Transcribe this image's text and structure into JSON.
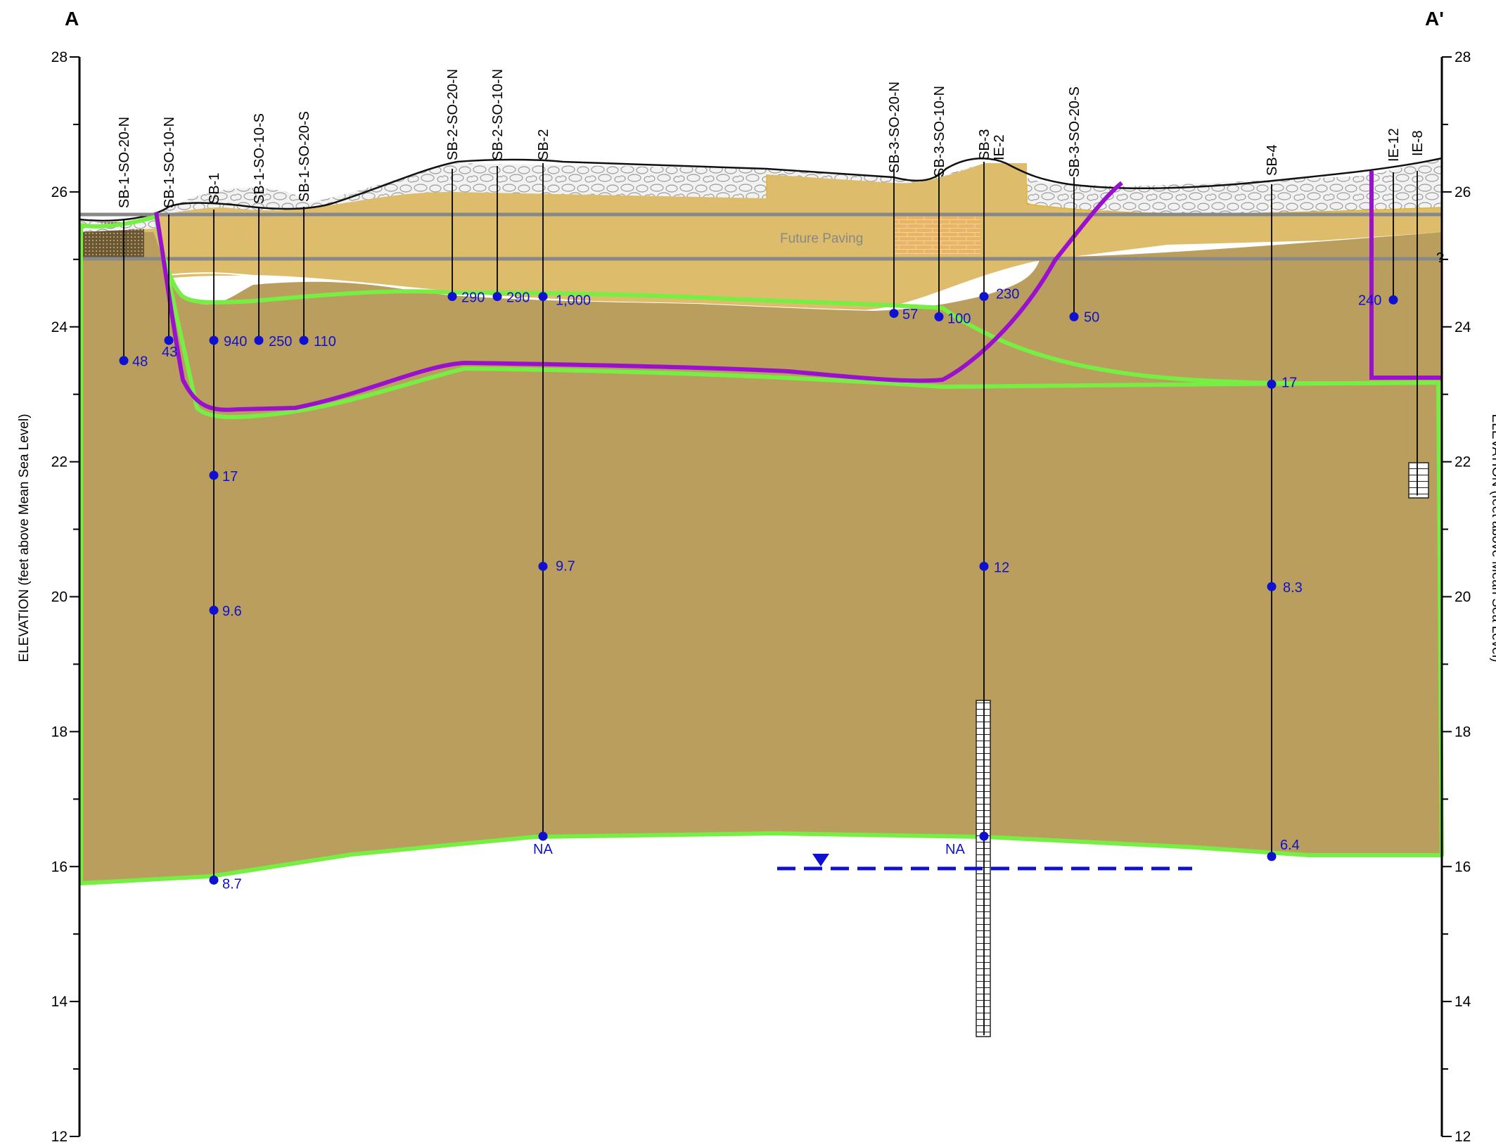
{
  "labels": {
    "left": "A",
    "right": "A'",
    "axis_left": "ELEVATION (feet above Mean Sea Level)",
    "axis_right": "ELEVATION (feet above Mean Sea Level)",
    "future_paving": "Future Paving",
    "question": "?"
  },
  "axis": {
    "min": 12,
    "max": 28,
    "ticks": [
      12,
      14,
      16,
      18,
      20,
      22,
      24,
      26,
      28
    ]
  },
  "borings": [
    {
      "name": "SB-1-SO-20-N",
      "elev": 23.5
    },
    {
      "name": "SB-1-SO-10-N",
      "elev": 23.8
    },
    {
      "name": "SB-1",
      "elev": 15.8
    },
    {
      "name": "SB-1-SO-10-S",
      "elev": 23.8
    },
    {
      "name": "SB-1-SO-20-S",
      "elev": 23.8
    },
    {
      "name": "SB-2-SO-20-N",
      "elev": 24.45
    },
    {
      "name": "SB-2-SO-10-N",
      "elev": 24.45
    },
    {
      "name": "SB-2",
      "elev": 16.45
    },
    {
      "name": "SB-3-SO-20-N",
      "elev": 24.2
    },
    {
      "name": "SB-3-SO-10-N",
      "elev": 24.15
    },
    {
      "name": "SB-3",
      "elev": 13.5
    },
    {
      "name": "IE-2",
      "elev": 13.5
    },
    {
      "name": "SB-3-SO-20-S",
      "elev": 24.15
    },
    {
      "name": "SB-4",
      "elev": 16.15
    },
    {
      "name": "IE-12",
      "elev": 24.4
    },
    {
      "name": "IE-8",
      "elev": 21.5
    }
  ],
  "samples": [
    {
      "value": "48",
      "elev": 23.5
    },
    {
      "value": "43",
      "elev": 23.8
    },
    {
      "value": "940",
      "elev": 23.8
    },
    {
      "value": "250",
      "elev": 23.8
    },
    {
      "value": "110",
      "elev": 23.8
    },
    {
      "value": "17",
      "elev": 21.8
    },
    {
      "value": "9.6",
      "elev": 19.8
    },
    {
      "value": "8.7",
      "elev": 15.8
    },
    {
      "value": "290",
      "elev": 24.45
    },
    {
      "value": "290",
      "elev": 24.45
    },
    {
      "value": "1,000",
      "elev": 24.45
    },
    {
      "value": "9.7",
      "elev": 20.45
    },
    {
      "value": "NA",
      "elev": 16.45
    },
    {
      "value": "57",
      "elev": 24.2
    },
    {
      "value": "100",
      "elev": 24.15
    },
    {
      "value": "230",
      "elev": 24.45
    },
    {
      "value": "12",
      "elev": 20.45
    },
    {
      "value": "NA",
      "elev": 16.45
    },
    {
      "value": "50",
      "elev": 24.15
    },
    {
      "value": "17",
      "elev": 23.15
    },
    {
      "value": "8.3",
      "elev": 20.15
    },
    {
      "value": "6.4",
      "elev": 16.15
    },
    {
      "value": "240",
      "elev": 24.4
    }
  ],
  "colors": {
    "fill_brown": "#b99e5e",
    "fill_tan": "#ddbd6b",
    "gravel": "#eeeeee",
    "green": "#77ee44",
    "purple": "#9911cc",
    "sample": "#1010d0",
    "line_gray": "#888888",
    "brick": "#ecb060"
  }
}
